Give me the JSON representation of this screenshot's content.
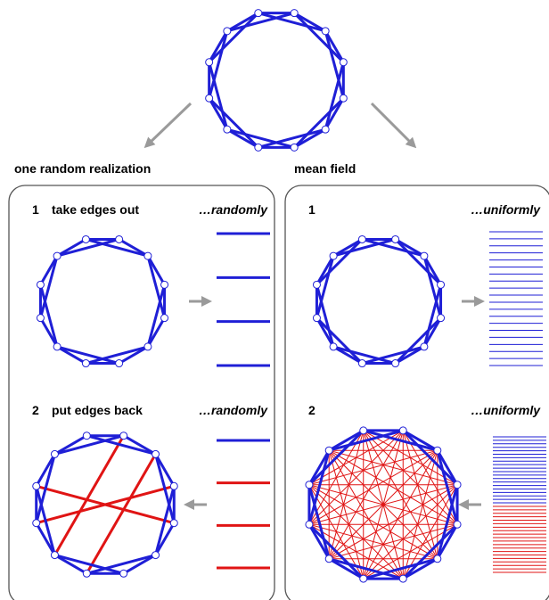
{
  "labels": {
    "left_title": "one random realization",
    "right_title": "mean field",
    "left_step1_num": "1",
    "left_step1_text": "take edges out",
    "left_step1_mode": "…randomly",
    "left_step2_num": "2",
    "left_step2_text": "put edges back",
    "left_step2_mode": "…randomly",
    "right_step1_num": "1",
    "right_step1_mode": "…uniformly",
    "right_step2_num": "2",
    "right_step2_mode": "…uniformly"
  },
  "graph": {
    "node_count": 12,
    "ring_offsets": [
      1,
      2
    ],
    "removed_edges_left": [
      [
        0,
        2
      ],
      [
        3,
        5
      ],
      [
        6,
        8
      ],
      [
        9,
        11
      ]
    ],
    "added_edges_left": [
      [
        0,
        7
      ],
      [
        2,
        8
      ],
      [
        3,
        9
      ],
      [
        1,
        6
      ]
    ]
  },
  "colors": {
    "edge": "#1f1fd6",
    "added_edge": "#e01414",
    "node_stroke": "#1f1fd6",
    "node_fill": "#ffffff",
    "arrow": "#9a9a9a",
    "panel_border": "#555555"
  },
  "stacks": {
    "left_top": {
      "blue": 4,
      "red": 0
    },
    "left_bottom": {
      "blue": 1,
      "red": 3
    },
    "right_top": {
      "blue": 20,
      "red": 0
    },
    "right_bottom": {
      "blue": 20,
      "red": 20
    }
  }
}
